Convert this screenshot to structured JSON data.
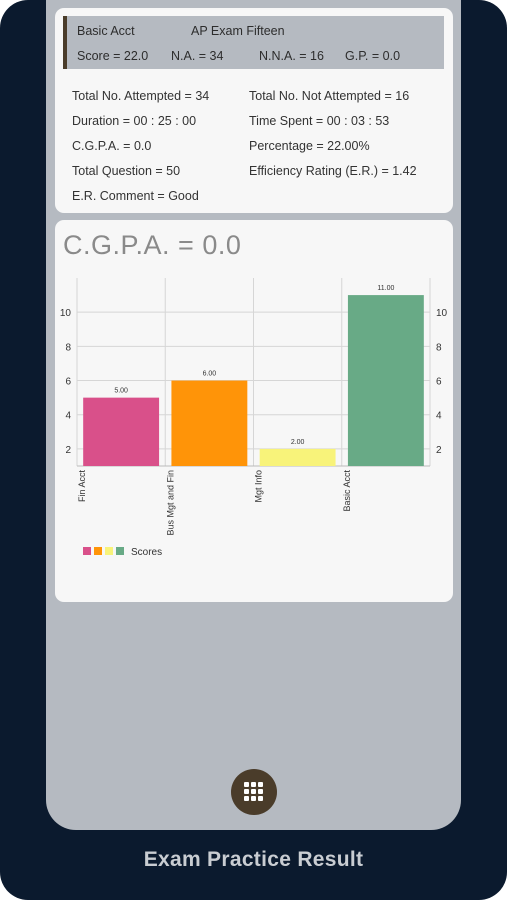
{
  "summary": {
    "subject": "Basic Acct",
    "exam_name": "AP Exam Fifteen",
    "score": "Score = 22.0",
    "na": "N.A. = 34",
    "nna": "N.N.A. = 16",
    "gp": "G.P. = 0.0"
  },
  "stats": {
    "total_attempted": "Total No. Attempted = 34",
    "total_not_attempted": "Total No. Not Attempted = 16",
    "duration": "Duration = 00 : 25 : 00",
    "time_spent": "Time Spent = 00 : 03 : 53",
    "cgpa": "C.G.P.A. = 0.0",
    "percentage": "Percentage = 22.00%",
    "total_question": "Total Question = 50",
    "efficiency_rating": "Efficiency Rating (E.R.) = 1.42",
    "er_comment": "E.R. Comment = Good"
  },
  "chart_title": "C.G.P.A. = 0.0",
  "chart_data": {
    "type": "bar",
    "categories": [
      "Fin Acct",
      "Bus Mgt and Fin",
      "Mgt Info",
      "Basic Acct"
    ],
    "values": [
      5.0,
      6.0,
      2.0,
      11.0
    ],
    "value_labels": [
      "5.00",
      "6.00",
      "2.00",
      "11.00"
    ],
    "colors": [
      "#d9508a",
      "#ff9408",
      "#f8f37a",
      "#68aa86"
    ],
    "series": [
      {
        "name": "Scores",
        "values": [
          5.0,
          6.0,
          2.0,
          11.0
        ]
      }
    ],
    "yticks": [
      2,
      4,
      6,
      8,
      10
    ],
    "ylim": [
      1,
      12
    ],
    "grid": true,
    "legend": "bottom-left"
  },
  "fab_icon": "grid-menu-icon",
  "footer_title": "Exam Practice Result"
}
